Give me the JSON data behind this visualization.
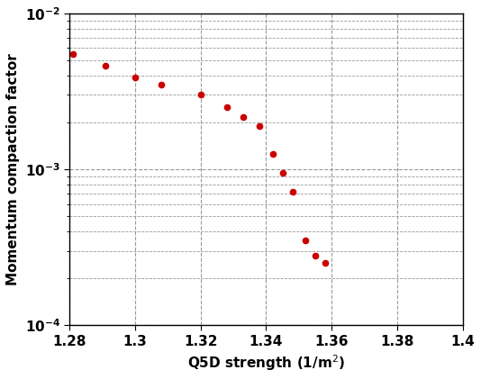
{
  "x": [
    1.281,
    1.291,
    1.3,
    1.308,
    1.32,
    1.328,
    1.333,
    1.338,
    1.342,
    1.345,
    1.348,
    1.352,
    1.355,
    1.358
  ],
  "y": [
    0.0055,
    0.0046,
    0.0039,
    0.0035,
    0.003,
    0.0025,
    0.00215,
    0.0019,
    0.00125,
    0.00095,
    0.00072,
    0.00035,
    0.00028,
    0.00025
  ],
  "xlabel": "Q5D strength (1/m$^2$)",
  "ylabel": "Momentum compaction factor",
  "xlim": [
    1.28,
    1.4
  ],
  "ylim": [
    0.0001,
    0.01
  ],
  "marker_color": "#cc0000",
  "marker_size": 4.5,
  "grid_color": "#999999",
  "background_color": "#ffffff",
  "tick_label_fontsize": 11,
  "axis_label_fontsize": 11,
  "xticks": [
    1.28,
    1.3,
    1.32,
    1.34,
    1.36,
    1.38,
    1.4
  ],
  "xtick_labels": [
    "1.28",
    "1.3",
    "1.32",
    "1.34",
    "1.36",
    "1.38",
    "1.4"
  ]
}
